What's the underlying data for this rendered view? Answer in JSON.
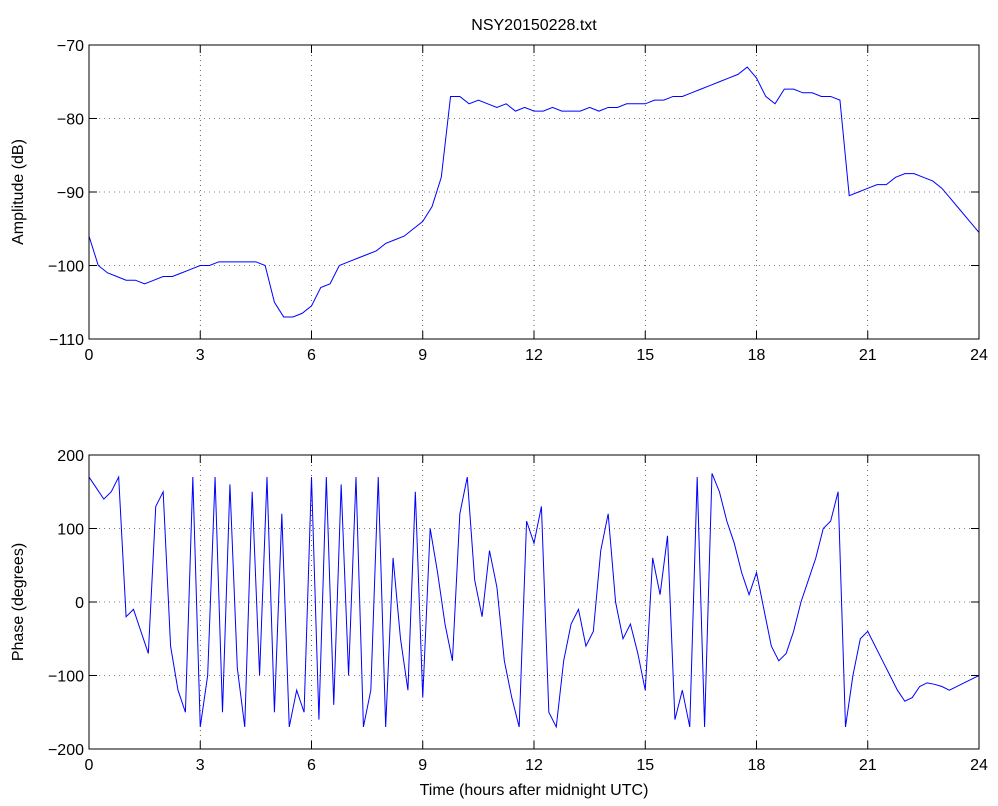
{
  "chart_data": [
    {
      "type": "line",
      "title": "NSY20150228.txt",
      "y_label": "Amplitude (dB)",
      "grid": true,
      "xlim": [
        0,
        24
      ],
      "xticks": [
        0,
        3,
        6,
        9,
        12,
        15,
        18,
        21,
        24
      ],
      "ylim": [
        -110,
        -70
      ],
      "yticks": [
        {
          "value": -110,
          "label": "−110"
        },
        {
          "value": -100,
          "label": "−100"
        },
        {
          "value": -90,
          "label": "−90"
        },
        {
          "value": -80,
          "label": "−80"
        },
        {
          "value": -70,
          "label": "−70"
        }
      ],
      "series": [
        {
          "color": "#0000ff",
          "x": [
            0,
            0.25,
            0.5,
            0.75,
            1,
            1.25,
            1.5,
            1.75,
            2,
            2.25,
            2.5,
            2.75,
            3,
            3.25,
            3.5,
            3.75,
            4,
            4.25,
            4.5,
            4.75,
            5,
            5.25,
            5.5,
            5.75,
            6,
            6.25,
            6.5,
            6.75,
            7,
            7.25,
            7.5,
            7.75,
            8,
            8.25,
            8.5,
            8.75,
            9,
            9.25,
            9.5,
            9.75,
            10,
            10.25,
            10.5,
            10.75,
            11,
            11.25,
            11.5,
            11.75,
            12,
            12.25,
            12.5,
            12.75,
            13,
            13.25,
            13.5,
            13.75,
            14,
            14.25,
            14.5,
            14.75,
            15,
            15.25,
            15.5,
            15.75,
            16,
            16.25,
            16.5,
            16.75,
            17,
            17.25,
            17.5,
            17.75,
            18,
            18.25,
            18.5,
            18.75,
            19,
            19.25,
            19.5,
            19.75,
            20,
            20.25,
            20.5,
            20.75,
            21,
            21.25,
            21.5,
            21.75,
            22,
            22.25,
            22.5,
            22.75,
            23,
            23.25,
            23.5,
            23.75,
            24
          ],
          "values": [
            -96,
            -100,
            -101,
            -101.5,
            -102,
            -102,
            -102.5,
            -102,
            -101.5,
            -101.5,
            -101,
            -100.5,
            -100,
            -100,
            -99.5,
            -99.5,
            -99.5,
            -99.5,
            -99.5,
            -100,
            -105,
            -107,
            -107,
            -106.5,
            -105.5,
            -103,
            -102.5,
            -100,
            -99.5,
            -99,
            -98.5,
            -98,
            -97,
            -96.5,
            -96,
            -95,
            -94,
            -92,
            -88,
            -77,
            -77,
            -78,
            -77.5,
            -78,
            -78.5,
            -78,
            -79,
            -78.5,
            -79,
            -79,
            -78.5,
            -79,
            -79,
            -79,
            -78.5,
            -79,
            -78.5,
            -78.5,
            -78,
            -78,
            -78,
            -77.5,
            -77.5,
            -77,
            -77,
            -76.5,
            -76,
            -75.5,
            -75,
            -74.5,
            -74,
            -73,
            -74.5,
            -77,
            -78,
            -76,
            -76,
            -76.5,
            -76.5,
            -77,
            -77,
            -77.5,
            -90.5,
            -90,
            -89.5,
            -89,
            -89,
            -88,
            -87.5,
            -87.5,
            -88,
            -88.5,
            -89.5,
            -91,
            -92.5,
            -94,
            -95.5
          ]
        }
      ]
    },
    {
      "type": "line",
      "x_label": "Time (hours after midnight UTC)",
      "y_label": "Phase (degrees)",
      "grid": true,
      "xlim": [
        0,
        24
      ],
      "xticks": [
        0,
        3,
        6,
        9,
        12,
        15,
        18,
        21,
        24
      ],
      "ylim": [
        -200,
        200
      ],
      "yticks": [
        {
          "value": -200,
          "label": "−200"
        },
        {
          "value": -100,
          "label": "−100"
        },
        0,
        100,
        200
      ],
      "series": [
        {
          "color": "#0000ff",
          "x": [
            0,
            0.2,
            0.4,
            0.6,
            0.8,
            1,
            1.2,
            1.4,
            1.6,
            1.8,
            2,
            2.2,
            2.4,
            2.6,
            2.8,
            3,
            3.2,
            3.4,
            3.6,
            3.8,
            4,
            4.2,
            4.4,
            4.6,
            4.8,
            5,
            5.2,
            5.4,
            5.6,
            5.8,
            6,
            6.2,
            6.4,
            6.6,
            6.8,
            7,
            7.2,
            7.4,
            7.6,
            7.8,
            8,
            8.2,
            8.4,
            8.6,
            8.8,
            9,
            9.2,
            9.4,
            9.6,
            9.8,
            10,
            10.2,
            10.4,
            10.6,
            10.8,
            11,
            11.2,
            11.4,
            11.6,
            11.8,
            12,
            12.2,
            12.4,
            12.6,
            12.8,
            13,
            13.2,
            13.4,
            13.6,
            13.8,
            14,
            14.2,
            14.4,
            14.6,
            14.8,
            15,
            15.2,
            15.4,
            15.6,
            15.8,
            16,
            16.2,
            16.4,
            16.6,
            16.8,
            17,
            17.2,
            17.4,
            17.6,
            17.8,
            18,
            18.2,
            18.4,
            18.6,
            18.8,
            19,
            19.2,
            19.4,
            19.6,
            19.8,
            20,
            20.2,
            20.4,
            20.6,
            20.8,
            21,
            21.2,
            21.4,
            21.6,
            21.8,
            22,
            22.2,
            22.4,
            22.6,
            22.8,
            23,
            23.2,
            23.4,
            23.6,
            23.8,
            24
          ],
          "values": [
            170,
            155,
            140,
            150,
            170,
            -20,
            -10,
            -40,
            -70,
            130,
            150,
            -60,
            -120,
            -150,
            170,
            -170,
            -100,
            170,
            -150,
            160,
            -90,
            -170,
            150,
            -100,
            170,
            -150,
            120,
            -170,
            -120,
            -150,
            170,
            -160,
            170,
            -140,
            160,
            -100,
            170,
            -170,
            -120,
            170,
            -170,
            60,
            -50,
            -120,
            150,
            -130,
            100,
            40,
            -30,
            -80,
            120,
            170,
            30,
            -20,
            70,
            20,
            -80,
            -130,
            -170,
            110,
            80,
            130,
            -150,
            -170,
            -80,
            -30,
            -10,
            -60,
            -40,
            70,
            120,
            0,
            -50,
            -30,
            -70,
            -120,
            60,
            10,
            90,
            -160,
            -120,
            -170,
            170,
            -170,
            175,
            150,
            110,
            80,
            40,
            10,
            40,
            -10,
            -60,
            -80,
            -70,
            -40,
            0,
            30,
            60,
            100,
            110,
            150,
            -170,
            -100,
            -50,
            -40,
            -60,
            -80,
            -100,
            -120,
            -135,
            -130,
            -115,
            -110,
            -112,
            -115,
            -120,
            -115,
            -110,
            -105,
            -100
          ]
        }
      ]
    }
  ]
}
